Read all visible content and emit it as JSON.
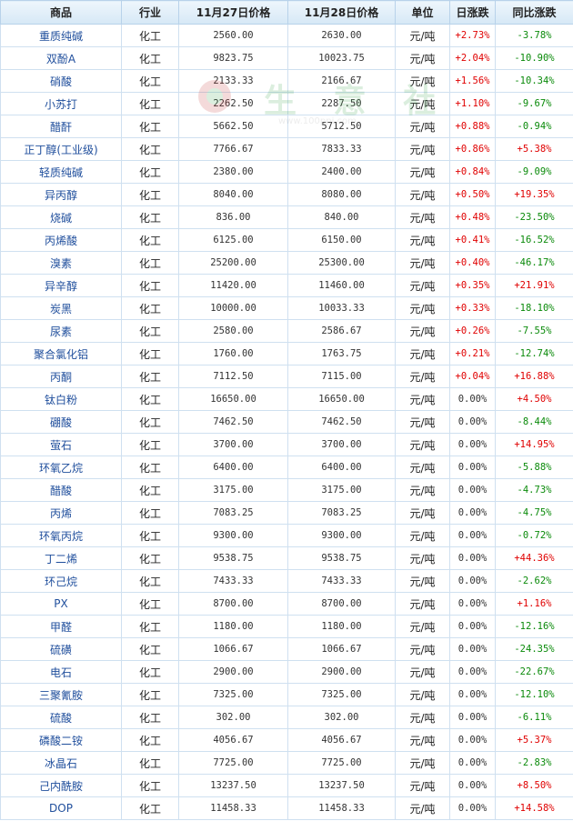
{
  "headers": {
    "product": "商品",
    "industry": "行业",
    "price_nov27": "11月27日价格",
    "price_nov28": "11月28日价格",
    "unit": "单位",
    "daily_change": "日涨跌",
    "yoy_change": "同比涨跌"
  },
  "watermark": {
    "text": "生 意 社",
    "url": "www.100ppi.com"
  },
  "rows": [
    {
      "name": "重质纯碱",
      "industry": "化工",
      "p1": "2560.00",
      "p2": "2630.00",
      "unit": "元/吨",
      "day": "+2.73%",
      "yoy": "-3.78%"
    },
    {
      "name": "双酚A",
      "industry": "化工",
      "p1": "9823.75",
      "p2": "10023.75",
      "unit": "元/吨",
      "day": "+2.04%",
      "yoy": "-10.90%"
    },
    {
      "name": "硝酸",
      "industry": "化工",
      "p1": "2133.33",
      "p2": "2166.67",
      "unit": "元/吨",
      "day": "+1.56%",
      "yoy": "-10.34%"
    },
    {
      "name": "小苏打",
      "industry": "化工",
      "p1": "2262.50",
      "p2": "2287.50",
      "unit": "元/吨",
      "day": "+1.10%",
      "yoy": "-9.67%"
    },
    {
      "name": "醋酐",
      "industry": "化工",
      "p1": "5662.50",
      "p2": "5712.50",
      "unit": "元/吨",
      "day": "+0.88%",
      "yoy": "-0.94%"
    },
    {
      "name": "正丁醇(工业级)",
      "industry": "化工",
      "p1": "7766.67",
      "p2": "7833.33",
      "unit": "元/吨",
      "day": "+0.86%",
      "yoy": "+5.38%"
    },
    {
      "name": "轻质纯碱",
      "industry": "化工",
      "p1": "2380.00",
      "p2": "2400.00",
      "unit": "元/吨",
      "day": "+0.84%",
      "yoy": "-9.09%"
    },
    {
      "name": "异丙醇",
      "industry": "化工",
      "p1": "8040.00",
      "p2": "8080.00",
      "unit": "元/吨",
      "day": "+0.50%",
      "yoy": "+19.35%"
    },
    {
      "name": "烧碱",
      "industry": "化工",
      "p1": "836.00",
      "p2": "840.00",
      "unit": "元/吨",
      "day": "+0.48%",
      "yoy": "-23.50%"
    },
    {
      "name": "丙烯酸",
      "industry": "化工",
      "p1": "6125.00",
      "p2": "6150.00",
      "unit": "元/吨",
      "day": "+0.41%",
      "yoy": "-16.52%"
    },
    {
      "name": "溴素",
      "industry": "化工",
      "p1": "25200.00",
      "p2": "25300.00",
      "unit": "元/吨",
      "day": "+0.40%",
      "yoy": "-46.17%"
    },
    {
      "name": "异辛醇",
      "industry": "化工",
      "p1": "11420.00",
      "p2": "11460.00",
      "unit": "元/吨",
      "day": "+0.35%",
      "yoy": "+21.91%"
    },
    {
      "name": "炭黑",
      "industry": "化工",
      "p1": "10000.00",
      "p2": "10033.33",
      "unit": "元/吨",
      "day": "+0.33%",
      "yoy": "-18.10%"
    },
    {
      "name": "尿素",
      "industry": "化工",
      "p1": "2580.00",
      "p2": "2586.67",
      "unit": "元/吨",
      "day": "+0.26%",
      "yoy": "-7.55%"
    },
    {
      "name": "聚合氯化铝",
      "industry": "化工",
      "p1": "1760.00",
      "p2": "1763.75",
      "unit": "元/吨",
      "day": "+0.21%",
      "yoy": "-12.74%"
    },
    {
      "name": "丙酮",
      "industry": "化工",
      "p1": "7112.50",
      "p2": "7115.00",
      "unit": "元/吨",
      "day": "+0.04%",
      "yoy": "+16.88%"
    },
    {
      "name": "钛白粉",
      "industry": "化工",
      "p1": "16650.00",
      "p2": "16650.00",
      "unit": "元/吨",
      "day": "0.00%",
      "yoy": "+4.50%"
    },
    {
      "name": "硼酸",
      "industry": "化工",
      "p1": "7462.50",
      "p2": "7462.50",
      "unit": "元/吨",
      "day": "0.00%",
      "yoy": "-8.44%"
    },
    {
      "name": "萤石",
      "industry": "化工",
      "p1": "3700.00",
      "p2": "3700.00",
      "unit": "元/吨",
      "day": "0.00%",
      "yoy": "+14.95%"
    },
    {
      "name": "环氧乙烷",
      "industry": "化工",
      "p1": "6400.00",
      "p2": "6400.00",
      "unit": "元/吨",
      "day": "0.00%",
      "yoy": "-5.88%"
    },
    {
      "name": "醋酸",
      "industry": "化工",
      "p1": "3175.00",
      "p2": "3175.00",
      "unit": "元/吨",
      "day": "0.00%",
      "yoy": "-4.73%"
    },
    {
      "name": "丙烯",
      "industry": "化工",
      "p1": "7083.25",
      "p2": "7083.25",
      "unit": "元/吨",
      "day": "0.00%",
      "yoy": "-4.75%"
    },
    {
      "name": "环氧丙烷",
      "industry": "化工",
      "p1": "9300.00",
      "p2": "9300.00",
      "unit": "元/吨",
      "day": "0.00%",
      "yoy": "-0.72%"
    },
    {
      "name": "丁二烯",
      "industry": "化工",
      "p1": "9538.75",
      "p2": "9538.75",
      "unit": "元/吨",
      "day": "0.00%",
      "yoy": "+44.36%"
    },
    {
      "name": "环己烷",
      "industry": "化工",
      "p1": "7433.33",
      "p2": "7433.33",
      "unit": "元/吨",
      "day": "0.00%",
      "yoy": "-2.62%"
    },
    {
      "name": "PX",
      "industry": "化工",
      "p1": "8700.00",
      "p2": "8700.00",
      "unit": "元/吨",
      "day": "0.00%",
      "yoy": "+1.16%"
    },
    {
      "name": "甲醛",
      "industry": "化工",
      "p1": "1180.00",
      "p2": "1180.00",
      "unit": "元/吨",
      "day": "0.00%",
      "yoy": "-12.16%"
    },
    {
      "name": "硫磺",
      "industry": "化工",
      "p1": "1066.67",
      "p2": "1066.67",
      "unit": "元/吨",
      "day": "0.00%",
      "yoy": "-24.35%"
    },
    {
      "name": "电石",
      "industry": "化工",
      "p1": "2900.00",
      "p2": "2900.00",
      "unit": "元/吨",
      "day": "0.00%",
      "yoy": "-22.67%"
    },
    {
      "name": "三聚氰胺",
      "industry": "化工",
      "p1": "7325.00",
      "p2": "7325.00",
      "unit": "元/吨",
      "day": "0.00%",
      "yoy": "-12.10%"
    },
    {
      "name": "硫酸",
      "industry": "化工",
      "p1": "302.00",
      "p2": "302.00",
      "unit": "元/吨",
      "day": "0.00%",
      "yoy": "-6.11%"
    },
    {
      "name": "磷酸二铵",
      "industry": "化工",
      "p1": "4056.67",
      "p2": "4056.67",
      "unit": "元/吨",
      "day": "0.00%",
      "yoy": "+5.37%"
    },
    {
      "name": "冰晶石",
      "industry": "化工",
      "p1": "7725.00",
      "p2": "7725.00",
      "unit": "元/吨",
      "day": "0.00%",
      "yoy": "-2.83%"
    },
    {
      "name": "己内酰胺",
      "industry": "化工",
      "p1": "13237.50",
      "p2": "13237.50",
      "unit": "元/吨",
      "day": "0.00%",
      "yoy": "+8.50%"
    },
    {
      "name": "DOP",
      "industry": "化工",
      "p1": "11458.33",
      "p2": "11458.33",
      "unit": "元/吨",
      "day": "0.00%",
      "yoy": "+14.58%"
    }
  ],
  "colors": {
    "up": "#e00000",
    "down": "#0a8a0a",
    "link": "#1f4e9c",
    "border": "#cfe0f0"
  }
}
